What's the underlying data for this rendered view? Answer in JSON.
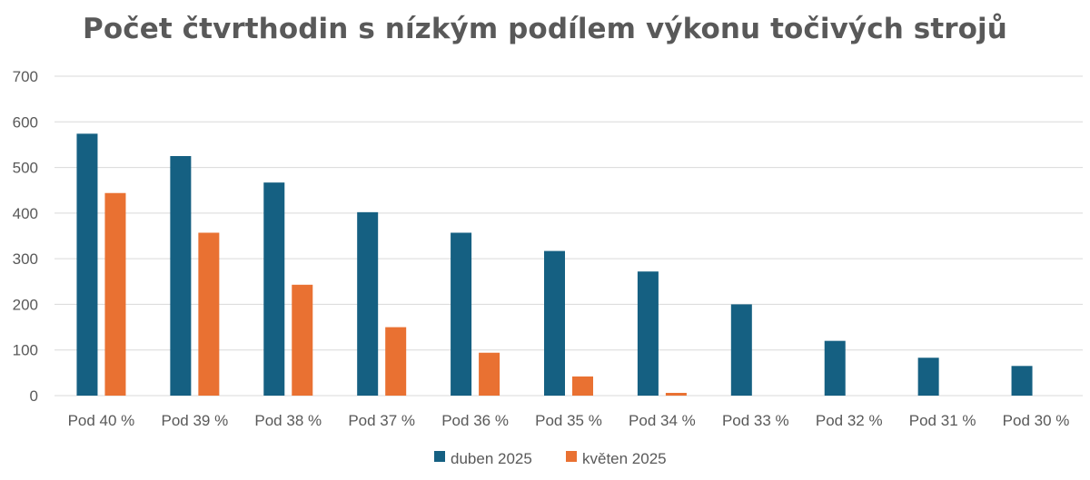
{
  "chart_data": {
    "type": "bar",
    "title": "Počet čtvrthodin s nízkým podílem výkonu točivých strojů",
    "xlabel": "",
    "ylabel": "",
    "ylim": [
      0,
      700
    ],
    "yticks": [
      0,
      100,
      200,
      300,
      400,
      500,
      600,
      700
    ],
    "grid": true,
    "legend_position": "bottom",
    "categories": [
      "Pod 40 %",
      "Pod 39 %",
      "Pod 38 %",
      "Pod 37 %",
      "Pod 36 %",
      "Pod 35 %",
      "Pod 34 %",
      "Pod 33 %",
      "Pod 32 %",
      "Pod 31 %",
      "Pod 30 %"
    ],
    "series": [
      {
        "name": "duben 2025",
        "color": "#156082",
        "values": [
          574,
          525,
          467,
          402,
          357,
          317,
          272,
          200,
          120,
          83,
          65
        ]
      },
      {
        "name": "květen 2025",
        "color": "#E97132",
        "values": [
          444,
          357,
          243,
          150,
          94,
          42,
          6,
          0,
          0,
          0,
          0
        ]
      }
    ]
  }
}
